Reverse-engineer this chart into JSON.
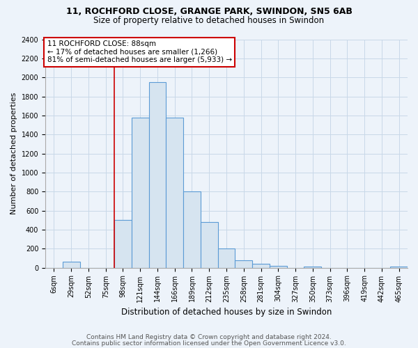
{
  "title1": "11, ROCHFORD CLOSE, GRANGE PARK, SWINDON, SN5 6AB",
  "title2": "Size of property relative to detached houses in Swindon",
  "xlabel": "Distribution of detached houses by size in Swindon",
  "ylabel": "Number of detached properties",
  "footer1": "Contains HM Land Registry data © Crown copyright and database right 2024.",
  "footer2": "Contains public sector information licensed under the Open Government Licence v3.0.",
  "annotation_line1": "11 ROCHFORD CLOSE: 88sqm",
  "annotation_line2": "← 17% of detached houses are smaller (1,266)",
  "annotation_line3": "81% of semi-detached houses are larger (5,933) →",
  "categories": [
    "6sqm",
    "29sqm",
    "52sqm",
    "75sqm",
    "98sqm",
    "121sqm",
    "144sqm",
    "166sqm",
    "189sqm",
    "212sqm",
    "235sqm",
    "258sqm",
    "281sqm",
    "304sqm",
    "327sqm",
    "350sqm",
    "373sqm",
    "396sqm",
    "419sqm",
    "442sqm",
    "465sqm"
  ],
  "values": [
    0,
    65,
    0,
    0,
    500,
    1580,
    1950,
    1580,
    800,
    480,
    200,
    80,
    40,
    20,
    0,
    10,
    0,
    0,
    0,
    0,
    10
  ],
  "bar_color": "#d6e4f0",
  "bar_edge_color": "#5b9bd5",
  "annotation_box_color": "#ffffff",
  "annotation_box_edge": "#cc0000",
  "vline_color": "#cc0000",
  "vline_x": 4,
  "ylim": [
    0,
    2400
  ],
  "yticks": [
    0,
    200,
    400,
    600,
    800,
    1000,
    1200,
    1400,
    1600,
    1800,
    2000,
    2200,
    2400
  ],
  "grid_color": "#c8d8e8",
  "background_color": "#edf3fa",
  "title_fontsize": 9,
  "subtitle_fontsize": 8.5,
  "ylabel_fontsize": 8,
  "xlabel_fontsize": 8.5,
  "tick_fontsize": 7,
  "annotation_fontsize": 7.5,
  "footer_fontsize": 6.5
}
